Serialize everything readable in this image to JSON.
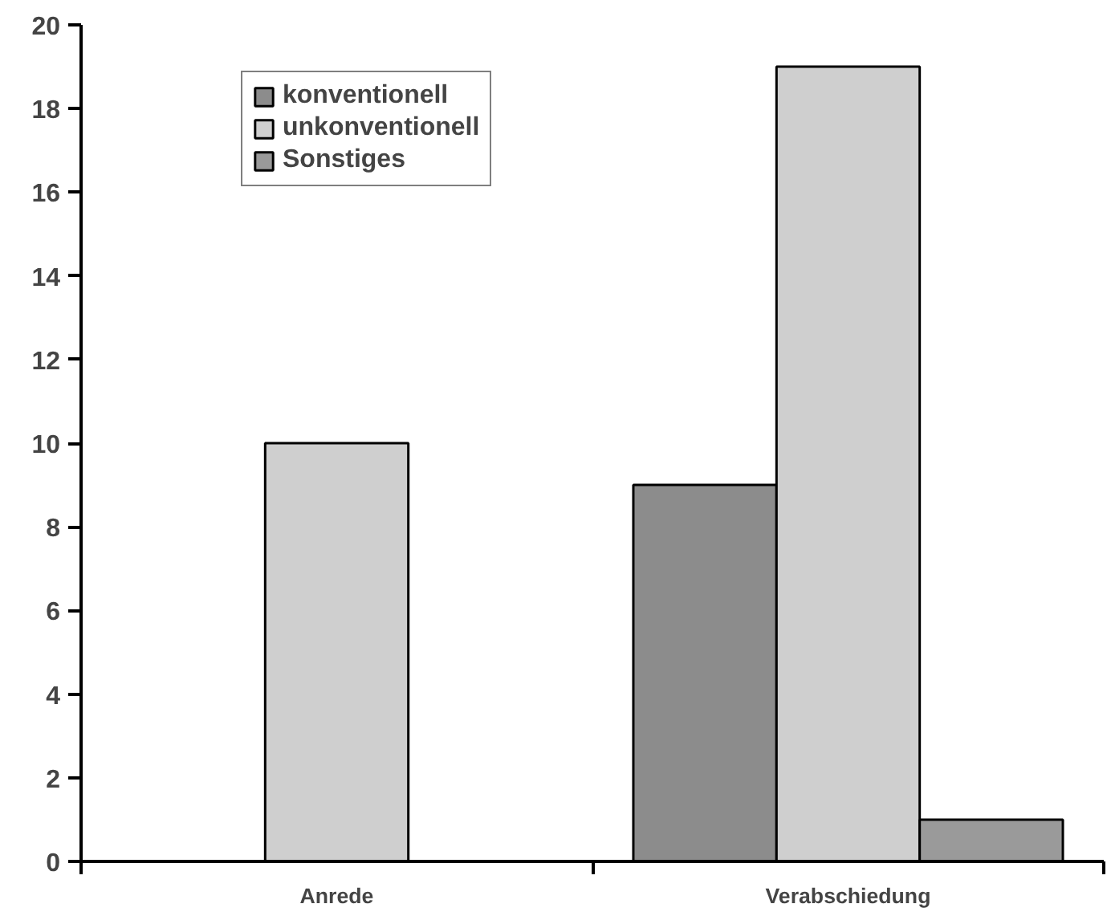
{
  "chart_data": {
    "type": "bar",
    "categories": [
      "Anrede",
      "Verabschiedung"
    ],
    "series": [
      {
        "name": "konventionell",
        "color": "#8c8c8c",
        "values": [
          null,
          9
        ]
      },
      {
        "name": "unkonventionell",
        "color": "#cfcfcf",
        "values": [
          10,
          19
        ]
      },
      {
        "name": "Sonstiges",
        "color": "#9a9a9a",
        "values": [
          null,
          1
        ]
      }
    ],
    "ylim": [
      0,
      20
    ],
    "yticks": [
      0,
      2,
      4,
      6,
      8,
      10,
      12,
      14,
      16,
      18,
      20
    ],
    "grid": false,
    "legend": "top left"
  }
}
